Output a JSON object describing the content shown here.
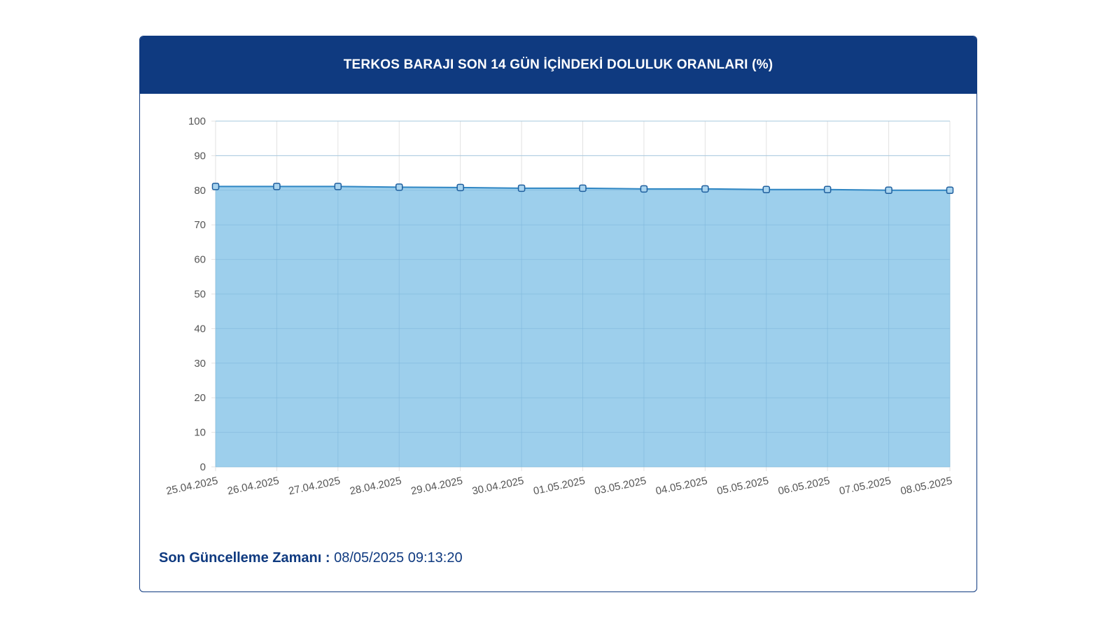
{
  "card": {
    "title": "TERKOS BARAJI SON 14 GÜN İÇİNDEKİ DOLULUK ORANLARI (%)"
  },
  "footer": {
    "label": "Son Güncelleme Zamanı :",
    "value": "08/05/2025 09:13:20"
  },
  "colors": {
    "header_bg": "#0f3a80",
    "area_fill": "#9dcfec",
    "line": "#2f86c3",
    "grid": "#e2e2e2"
  },
  "chart_data": {
    "type": "area",
    "title": "TERKOS BARAJI SON 14 GÜN İÇİNDEKİ DOLULUK ORANLARI (%)",
    "xlabel": "",
    "ylabel": "",
    "ylim": [
      0,
      100
    ],
    "yticks": [
      0,
      10,
      20,
      30,
      40,
      50,
      60,
      70,
      80,
      90,
      100
    ],
    "categories": [
      "25.04.2025",
      "26.04.2025",
      "27.04.2025",
      "28.04.2025",
      "29.04.2025",
      "30.04.2025",
      "01.05.2025",
      "03.05.2025",
      "04.05.2025",
      "05.05.2025",
      "06.05.2025",
      "07.05.2025",
      "08.05.2025"
    ],
    "values": [
      81.1,
      81.1,
      81.1,
      80.9,
      80.8,
      80.6,
      80.6,
      80.4,
      80.4,
      80.2,
      80.2,
      80.0,
      80.0
    ],
    "grid": true,
    "legend": "none"
  }
}
